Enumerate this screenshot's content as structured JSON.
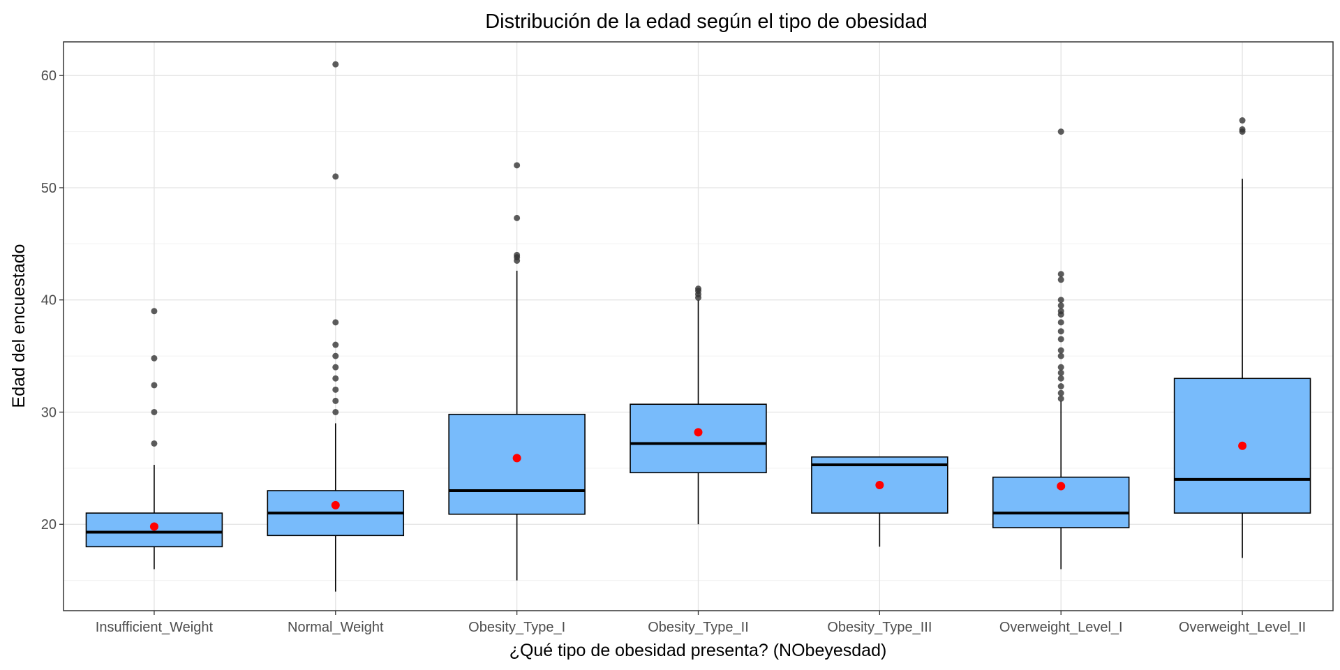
{
  "chart_data": {
    "type": "box",
    "title": "Distribución de la edad según el tipo de obesidad",
    "xlabel": "¿Qué tipo de obesidad presenta? (NObeyesdad)",
    "ylabel": "Edad del encuestado",
    "ylim": [
      12.3,
      63.0
    ],
    "yticks": [
      20,
      30,
      40,
      50,
      60
    ],
    "grid": true,
    "legend": "none",
    "colors": {
      "box_fill": "#78BBFB",
      "box_edge": "#000000",
      "mean": "#FF0000",
      "outlier": "#333333"
    },
    "categories": [
      "Insufficient_Weight",
      "Normal_Weight",
      "Obesity_Type_I",
      "Obesity_Type_II",
      "Obesity_Type_III",
      "Overweight_Level_I",
      "Overweight_Level_II"
    ],
    "boxes": [
      {
        "category": "Insufficient_Weight",
        "min": 16.0,
        "q1": 18.0,
        "median": 19.3,
        "q3": 21.0,
        "max": 25.3,
        "mean": 19.8,
        "outliers": [
          27.2,
          30.0,
          32.4,
          34.8,
          39.0
        ]
      },
      {
        "category": "Normal_Weight",
        "min": 14.0,
        "q1": 19.0,
        "median": 21.0,
        "q3": 23.0,
        "max": 29.0,
        "mean": 21.7,
        "outliers": [
          30.0,
          31.0,
          32.0,
          33.0,
          34.0,
          35.0,
          36.0,
          38.0,
          51.0,
          61.0
        ]
      },
      {
        "category": "Obesity_Type_I",
        "min": 15.0,
        "q1": 20.9,
        "median": 23.0,
        "q3": 29.8,
        "max": 42.6,
        "mean": 25.9,
        "outliers": [
          43.5,
          43.8,
          44.0,
          47.3,
          52.0
        ]
      },
      {
        "category": "Obesity_Type_II",
        "min": 20.0,
        "q1": 24.6,
        "median": 27.2,
        "q3": 30.7,
        "max": 40.0,
        "mean": 28.2,
        "outliers": [
          40.2,
          40.5,
          40.8,
          41.0
        ]
      },
      {
        "category": "Obesity_Type_III",
        "min": 18.0,
        "q1": 21.0,
        "median": 25.3,
        "q3": 26.0,
        "max": 26.0,
        "mean": 23.5,
        "outliers": []
      },
      {
        "category": "Overweight_Level_I",
        "min": 16.0,
        "q1": 19.7,
        "median": 21.0,
        "q3": 24.2,
        "max": 31.0,
        "mean": 23.4,
        "outliers": [
          31.2,
          31.7,
          32.3,
          33.0,
          33.5,
          34.0,
          35.0,
          35.5,
          36.5,
          37.2,
          38.0,
          38.7,
          39.0,
          39.5,
          40.0,
          41.8,
          42.3,
          55.0
        ]
      },
      {
        "category": "Overweight_Level_II",
        "min": 17.0,
        "q1": 21.0,
        "median": 24.0,
        "q3": 33.0,
        "max": 50.8,
        "mean": 27.0,
        "outliers": [
          55.0,
          55.2,
          56.0
        ]
      }
    ]
  }
}
